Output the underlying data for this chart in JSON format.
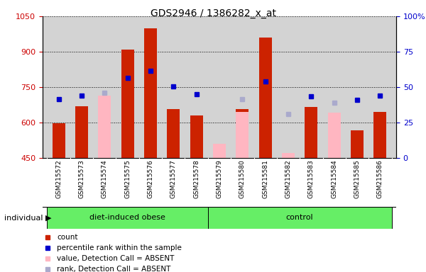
{
  "title": "GDS2946 / 1386282_x_at",
  "samples": [
    "GSM215572",
    "GSM215573",
    "GSM215574",
    "GSM215575",
    "GSM215576",
    "GSM215577",
    "GSM215578",
    "GSM215579",
    "GSM215580",
    "GSM215581",
    "GSM215582",
    "GSM215583",
    "GSM215584",
    "GSM215585",
    "GSM215586"
  ],
  "n_obese": 7,
  "n_control": 8,
  "count": [
    595,
    668,
    null,
    910,
    1000,
    655,
    628,
    null,
    655,
    960,
    null,
    665,
    null,
    565,
    645
  ],
  "rank_present": [
    700,
    715,
    null,
    790,
    820,
    753,
    720,
    null,
    null,
    775,
    null,
    710,
    null,
    695,
    715
  ],
  "absent_value": [
    null,
    null,
    715,
    null,
    null,
    null,
    null,
    510,
    645,
    null,
    470,
    null,
    640,
    null,
    null
  ],
  "absent_rank": [
    null,
    null,
    725,
    null,
    null,
    null,
    null,
    null,
    700,
    null,
    635,
    null,
    685,
    null,
    null
  ],
  "ylim_left": [
    450,
    1050
  ],
  "ylim_right": [
    0,
    100
  ],
  "yticks_left": [
    450,
    600,
    750,
    900,
    1050
  ],
  "yticks_right": [
    0,
    25,
    50,
    75,
    100
  ],
  "ytick_right_labels": [
    "0",
    "25",
    "50",
    "75",
    "100%"
  ],
  "left_tick_color": "#cc0000",
  "right_tick_color": "#0000cc",
  "bar_color_red": "#cc2200",
  "bar_color_pink": "#ffb6c1",
  "dot_color_blue": "#0000cc",
  "dot_color_lightblue": "#aaaacc",
  "plot_bg": "#d3d3d3",
  "group_bg": "#66ee66",
  "legend_items": [
    "count",
    "percentile rank within the sample",
    "value, Detection Call = ABSENT",
    "rank, Detection Call = ABSENT"
  ],
  "legend_colors": [
    "#cc2200",
    "#0000cc",
    "#ffb6c1",
    "#aaaacc"
  ]
}
